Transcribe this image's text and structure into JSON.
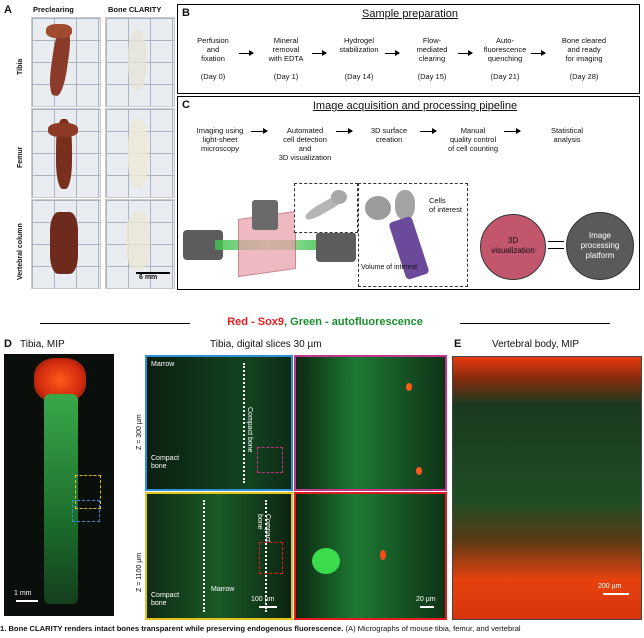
{
  "panelA": {
    "label": "A",
    "col_headers": [
      "Preclearing",
      "Bone CLARITY"
    ],
    "row_labels": [
      "Tibia",
      "Femur",
      "Vertebral column"
    ],
    "scale_bar": "6 mm"
  },
  "panelB": {
    "label": "B",
    "title": "Sample preparation",
    "steps": [
      {
        "text": "Perfusion\nand\nfixation",
        "day": "(Day 0)"
      },
      {
        "text": "Mineral\nremoval\nwith EDTA",
        "day": "(Day 1)"
      },
      {
        "text": "Hydrogel\nstabilization",
        "day": "(Day 14)"
      },
      {
        "text": "Flow-\nmediated\nclearing",
        "day": "(Day 15)"
      },
      {
        "text": "Auto-\nfluorescence\nquenching",
        "day": "(Day 21)"
      },
      {
        "text": "Bone cleared\nand ready\nfor imaging",
        "day": "(Day 28)"
      }
    ]
  },
  "panelC": {
    "label": "C",
    "title": "Image acquisition and processing pipeline",
    "steps": [
      "Imaging using\nlight-sheet\nmicroscopy",
      "Automated\ncell detection\nand\n3D visualization",
      "3D surface\ncreation",
      "Manual\nquality control\nof cell counting",
      "Statistical\nanalysis"
    ],
    "cells_label": "Cells\nof interest",
    "voi_label": "Volume of interest",
    "circle1": "3D\nvisualization",
    "circle2": "Image\nprocessing\nplatform"
  },
  "stain_title": {
    "red": "Red - Sox9",
    "green": ", Green - autofluorescence"
  },
  "panelD": {
    "label": "D",
    "title": "Tibia, MIP",
    "scale": "1 mm",
    "slices_title": "Tibia, digital slices 30 µm",
    "z1": "Z = 300 µm",
    "z2": "Z = 1100 µm",
    "marrow": "Marrow",
    "compact_bone": "Compact\nbone",
    "compact_bone_v": "Compact bone",
    "scale100": "100 µm",
    "scale20": "20 µm"
  },
  "panelE": {
    "label": "E",
    "title": "Vertebral body, MIP",
    "scale": "200 µm"
  },
  "caption": {
    "bold": "1. Bone CLARITY renders intact bones transparent while preserving endogenous fluorescence.",
    "rest": " (A) Micrographs of mouse tibia, femur, and vertebral"
  },
  "colors": {
    "red": "#e11d1d",
    "green": "#1a8f2e",
    "blue": "#2f8fd8",
    "magenta": "#c0368f",
    "yellow": "#e2c21c",
    "circle_red": "#c2566d",
    "circle_grey": "#5a5a5a"
  }
}
